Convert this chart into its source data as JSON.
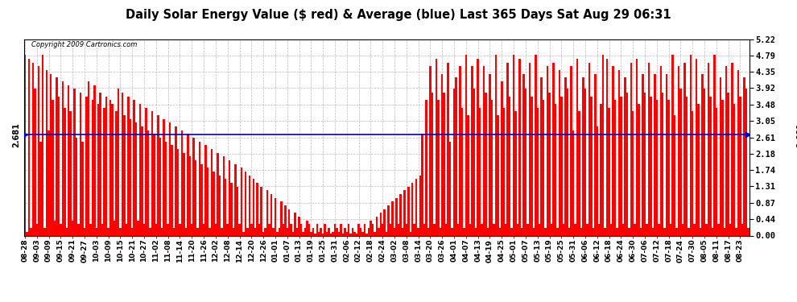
{
  "title": "Daily Solar Energy Value ($ red) & Average (blue) Last 365 Days Sat Aug 29 06:31",
  "copyright": "Copyright 2009 Cartronics.com",
  "bar_color": "#ff0000",
  "avg_line_color": "#0000cc",
  "avg_value": 2.681,
  "ymin": 0.0,
  "ymax": 5.22,
  "yticks": [
    0.0,
    0.44,
    0.87,
    1.31,
    1.74,
    2.18,
    2.61,
    3.05,
    3.48,
    3.92,
    4.35,
    4.79,
    5.22
  ],
  "bg_color": "#ffffff",
  "grid_color": "#aaaaaa",
  "title_fontsize": 11,
  "x_labels": [
    "08-28",
    "09-03",
    "09-09",
    "09-15",
    "09-21",
    "09-27",
    "10-03",
    "10-09",
    "10-15",
    "10-21",
    "10-27",
    "11-02",
    "11-08",
    "11-14",
    "11-20",
    "11-26",
    "12-02",
    "12-08",
    "12-14",
    "12-20",
    "12-26",
    "01-01",
    "01-07",
    "01-13",
    "01-19",
    "01-25",
    "01-31",
    "02-06",
    "02-12",
    "02-18",
    "02-24",
    "03-02",
    "03-08",
    "03-14",
    "03-20",
    "03-26",
    "04-01",
    "04-07",
    "04-13",
    "04-19",
    "04-25",
    "05-01",
    "05-07",
    "05-13",
    "05-19",
    "05-25",
    "05-31",
    "06-06",
    "06-12",
    "06-18",
    "06-24",
    "06-30",
    "07-06",
    "07-12",
    "07-18",
    "07-24",
    "07-30",
    "08-05",
    "08-11",
    "08-17",
    "08-23"
  ],
  "bar_values": [
    4.8,
    0.1,
    4.7,
    0.2,
    4.6,
    3.9,
    0.3,
    4.5,
    2.5,
    4.8,
    0.2,
    4.4,
    2.8,
    4.3,
    3.6,
    0.4,
    4.2,
    3.7,
    0.3,
    4.1,
    3.4,
    0.2,
    4.0,
    3.3,
    0.4,
    3.9,
    2.6,
    0.3,
    3.8,
    2.5,
    0.2,
    3.7,
    4.1,
    0.3,
    3.6,
    4.0,
    0.2,
    3.5,
    3.8,
    0.3,
    3.4,
    3.7,
    0.2,
    3.6,
    3.5,
    0.4,
    3.3,
    3.9,
    0.2,
    3.8,
    3.2,
    0.3,
    3.7,
    3.1,
    0.2,
    3.6,
    3.0,
    0.4,
    3.5,
    2.9,
    0.3,
    3.4,
    2.8,
    0.2,
    3.3,
    2.7,
    0.3,
    3.2,
    2.6,
    0.2,
    3.1,
    2.5,
    0.3,
    3.0,
    2.4,
    0.2,
    2.9,
    2.3,
    0.3,
    2.8,
    2.2,
    0.2,
    2.7,
    2.1,
    0.3,
    2.6,
    2.0,
    0.2,
    2.5,
    1.9,
    0.3,
    2.4,
    1.8,
    0.2,
    2.3,
    1.7,
    0.3,
    2.2,
    1.6,
    0.2,
    2.1,
    1.5,
    0.3,
    2.0,
    1.4,
    0.2,
    1.9,
    1.3,
    0.3,
    1.8,
    0.1,
    1.7,
    0.2,
    1.6,
    0.3,
    1.5,
    0.2,
    1.4,
    0.3,
    1.3,
    0.1,
    0.2,
    1.2,
    0.3,
    1.1,
    0.2,
    1.0,
    0.1,
    0.2,
    0.9,
    0.3,
    0.8,
    0.2,
    0.7,
    0.3,
    0.1,
    0.6,
    0.2,
    0.5,
    0.3,
    0.1,
    0.2,
    0.4,
    0.3,
    0.1,
    0.2,
    0.05,
    0.3,
    0.1,
    0.2,
    0.05,
    0.3,
    0.1,
    0.2,
    0.05,
    0.1,
    0.3,
    0.2,
    0.1,
    0.3,
    0.05,
    0.2,
    0.1,
    0.3,
    0.05,
    0.2,
    0.1,
    0.05,
    0.3,
    0.2,
    0.1,
    0.3,
    0.05,
    0.2,
    0.4,
    0.3,
    0.1,
    0.5,
    0.2,
    0.6,
    0.3,
    0.7,
    0.1,
    0.8,
    0.3,
    0.9,
    0.2,
    1.0,
    0.3,
    1.1,
    0.2,
    1.2,
    0.3,
    1.3,
    0.1,
    1.4,
    0.3,
    1.5,
    0.2,
    1.6,
    2.7,
    0.3,
    3.6,
    0.2,
    4.5,
    3.8,
    0.3,
    4.7,
    3.6,
    0.2,
    4.3,
    3.8,
    0.3,
    4.6,
    2.5,
    0.2,
    3.9,
    4.2,
    0.3,
    4.5,
    3.4,
    0.2,
    4.8,
    3.2,
    0.3,
    4.5,
    3.9,
    0.2,
    4.7,
    3.4,
    0.3,
    4.5,
    3.8,
    0.2,
    4.3,
    3.6,
    0.3,
    4.8,
    3.2,
    0.2,
    4.1,
    3.4,
    0.3,
    4.6,
    3.7,
    0.2,
    4.8,
    3.3,
    0.3,
    4.7,
    0.2,
    4.3,
    3.9,
    0.3,
    4.6,
    3.7,
    0.2,
    4.8,
    3.4,
    0.3,
    4.2,
    3.6,
    0.2,
    4.5,
    3.8,
    0.3,
    4.6,
    3.5,
    0.2,
    4.4,
    3.7,
    0.3,
    4.2,
    3.9,
    0.2,
    4.5,
    2.8,
    0.3,
    4.7,
    3.3,
    0.2,
    4.2,
    3.9,
    0.3,
    4.6,
    3.7,
    0.2,
    4.3,
    2.9,
    0.3,
    3.5,
    4.8,
    0.2,
    4.7,
    3.4,
    0.3,
    4.5,
    3.6,
    0.2,
    4.4,
    3.7,
    0.3,
    4.2,
    3.8,
    0.2,
    4.6,
    3.3,
    0.3,
    4.7,
    3.5,
    0.2,
    4.3,
    3.8,
    0.3,
    4.6,
    3.7,
    0.2,
    4.3,
    3.6,
    0.3,
    4.5,
    3.8,
    0.2,
    4.3,
    3.6,
    0.3,
    4.8,
    3.2,
    0.2,
    4.5,
    3.9,
    0.3,
    4.6,
    3.7,
    0.2,
    4.8,
    3.3,
    0.3,
    4.7,
    3.5,
    0.2,
    4.3,
    3.9,
    0.3,
    4.6,
    3.7,
    0.2,
    4.8,
    3.4,
    0.3,
    4.2,
    3.6,
    0.2,
    4.5,
    3.8,
    0.3,
    4.6,
    3.5,
    0.2,
    4.4,
    3.7,
    0.3,
    4.2,
    3.9,
    0.2
  ]
}
